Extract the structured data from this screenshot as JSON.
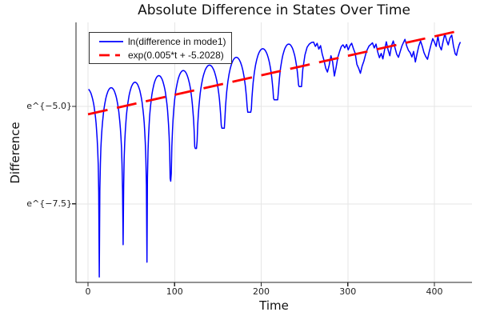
{
  "chart_data": {
    "type": "line",
    "title": "Absolute Difference in States Over Time",
    "xlabel": "Time",
    "ylabel": "Difference",
    "background": "#ffffff",
    "grid": true,
    "grid_color": "#e6e6e6",
    "axis_color": "#262626",
    "text_color": "#222222",
    "legend_position": "top-left",
    "x_axis": {
      "ticks": [
        0,
        100,
        200,
        300,
        400
      ],
      "labels": [
        "0",
        "100",
        "200",
        "300",
        "400"
      ],
      "lim": [
        -13.9,
        443.4
      ]
    },
    "y_axis": {
      "scale": "log",
      "ticks_ln": [
        -5.0,
        -7.5
      ],
      "labels": [
        "e^{−5.0}",
        "e^{−7.5}"
      ],
      "lim_ln": [
        -9.517,
        -2.844
      ]
    },
    "series": [
      {
        "name": "ln(difference in mode1)",
        "color": "#0000ff",
        "style": "solid",
        "stroke_width": 1.5,
        "description": "log-scale absolute difference; beating pattern with cusp minima, then noisy exponential growth",
        "beat_cusps_t": [
          -14.5,
          13,
          40.5,
          68,
          95.5,
          124.5,
          156,
          186.5,
          217,
          246.5
        ],
        "beat_cusps_ln": [
          -9.0,
          -9.38,
          -8.55,
          -9.0,
          -6.92,
          -6.08,
          -5.56,
          -5.15,
          -4.83,
          -4.49
        ],
        "beat_peaks_ln": [
          -4.55,
          -4.52,
          -4.38,
          -4.21,
          -4.08,
          -3.94,
          -3.74,
          -3.52,
          -3.4
        ],
        "tail_t": [
          248,
          250.5,
          253,
          255.5,
          258,
          260.5,
          262.5,
          264.5,
          266.5,
          268.5,
          270.5,
          272.5,
          274.5,
          276.5,
          278.5,
          280.5,
          282.5,
          284.5,
          286.5,
          288.5,
          290.5,
          292.5,
          294.5,
          296.5,
          298.5,
          300.5,
          302.5,
          304.5,
          306.5,
          308.5,
          310.5,
          312.5,
          314.5,
          316.5,
          318.5,
          320.5,
          322.5,
          324.5,
          326.5,
          328.5,
          330.5,
          332.5,
          334.5,
          336.5,
          338.5,
          340.5,
          342.5,
          344.5,
          346.5,
          348.5,
          350.5,
          352.5,
          354.5,
          356.5,
          358.5,
          360.5,
          362.5,
          364.5,
          366,
          368,
          370,
          372,
          374,
          376,
          378,
          380,
          382,
          384,
          386,
          388,
          390,
          392,
          394,
          396,
          398,
          400,
          402,
          404,
          406,
          408,
          410,
          412,
          414,
          416,
          418,
          420,
          422,
          424,
          425.5,
          427,
          428.5,
          430
        ],
        "tail_ln": [
          -4.05,
          -3.68,
          -3.48,
          -3.4,
          -3.36,
          -3.35,
          -3.46,
          -3.38,
          -3.53,
          -3.44,
          -3.66,
          -3.82,
          -4.02,
          -4.12,
          -3.94,
          -3.7,
          -3.86,
          -4.22,
          -3.99,
          -3.74,
          -3.59,
          -3.46,
          -3.42,
          -3.5,
          -3.41,
          -3.55,
          -3.44,
          -3.38,
          -3.52,
          -3.64,
          -3.92,
          -4.02,
          -4.15,
          -3.97,
          -3.84,
          -3.67,
          -3.54,
          -3.45,
          -3.41,
          -3.37,
          -3.5,
          -3.4,
          -3.6,
          -3.75,
          -3.64,
          -3.78,
          -3.54,
          -3.34,
          -3.55,
          -3.7,
          -3.44,
          -3.32,
          -3.5,
          -3.66,
          -3.74,
          -3.59,
          -3.45,
          -3.35,
          -3.28,
          -3.45,
          -3.56,
          -3.62,
          -3.73,
          -3.59,
          -3.86,
          -3.64,
          -3.45,
          -3.32,
          -3.46,
          -3.62,
          -3.72,
          -3.79,
          -3.6,
          -3.42,
          -3.26,
          -3.35,
          -3.46,
          -3.2,
          -3.45,
          -3.55,
          -3.34,
          -3.14,
          -3.3,
          -3.42,
          -3.24,
          -3.17,
          -3.45,
          -3.65,
          -3.69,
          -3.54,
          -3.42,
          -3.35
        ]
      },
      {
        "name": "exp(0.005*t + -5.2028)",
        "color": "#ff0000",
        "style": "dashed",
        "stroke_width": 2.8,
        "dash": "25 12",
        "slope": 0.005,
        "intercept": -5.2028,
        "t_range": [
          0,
          430
        ]
      }
    ]
  }
}
